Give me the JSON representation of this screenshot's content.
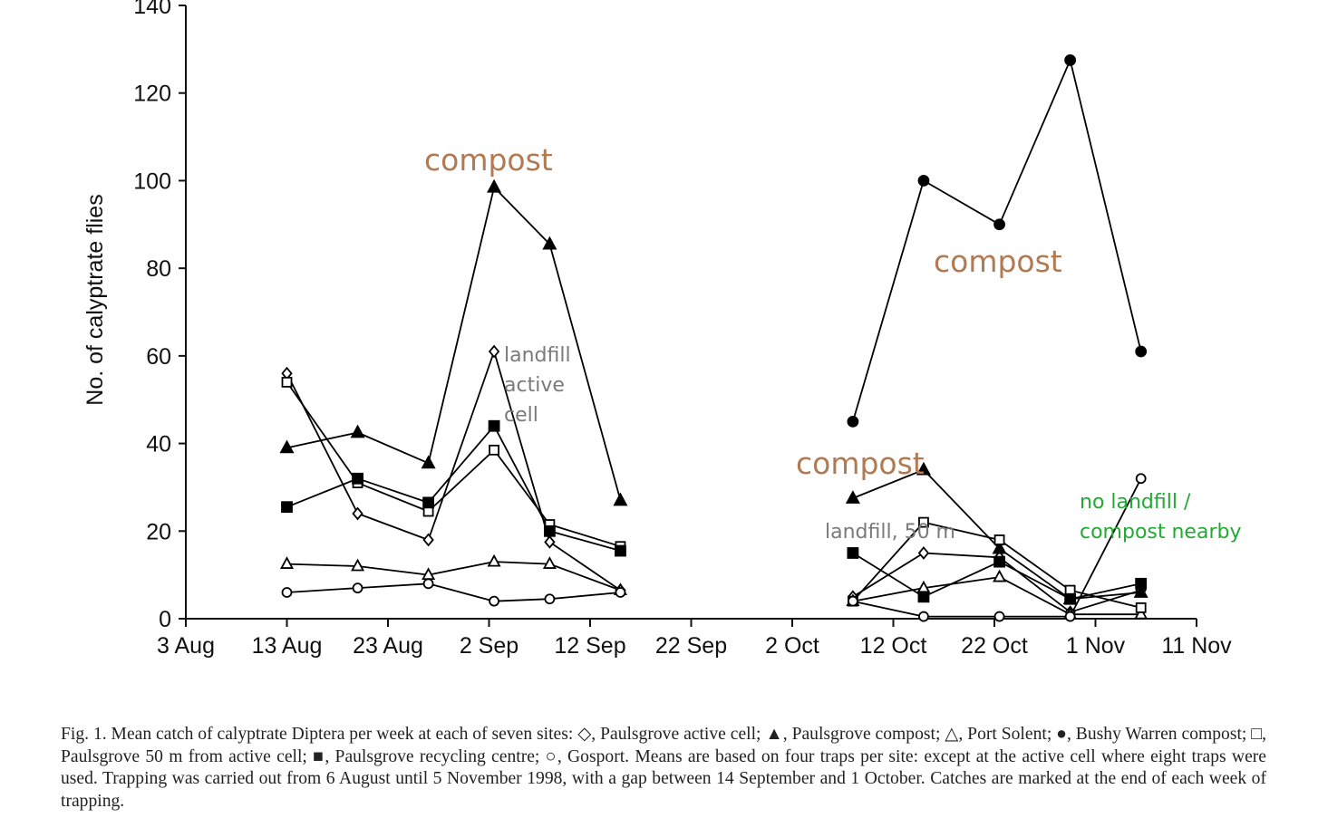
{
  "chart_data": {
    "type": "line",
    "ylabel": "No. of calyptrate flies",
    "xlabel": "",
    "ylim": [
      0,
      140
    ],
    "yticks": [
      0,
      20,
      40,
      60,
      80,
      100,
      120,
      140
    ],
    "x_unit": "days since 3 Aug 1998",
    "xlim": [
      0,
      100
    ],
    "xticks": [
      {
        "day": 0,
        "label": "3 Aug"
      },
      {
        "day": 10,
        "label": "13 Aug"
      },
      {
        "day": 20,
        "label": "23 Aug"
      },
      {
        "day": 30,
        "label": "2 Sep"
      },
      {
        "day": 40,
        "label": "12 Sep"
      },
      {
        "day": 50,
        "label": "22 Sep"
      },
      {
        "day": 60,
        "label": "2 Oct"
      },
      {
        "day": 70,
        "label": "12 Oct"
      },
      {
        "day": 80,
        "label": "22 Oct"
      },
      {
        "day": 90,
        "label": "1 Nov"
      },
      {
        "day": 100,
        "label": "11 Nov"
      }
    ],
    "series": [
      {
        "name": "Paulsgrove active cell",
        "marker": "diamond-open",
        "segments": [
          [
            [
              10,
              56
            ],
            [
              17,
              24
            ],
            [
              24,
              18
            ],
            [
              30.5,
              61
            ],
            [
              36,
              17.5
            ],
            [
              43,
              6.5
            ]
          ],
          [
            [
              66,
              5
            ],
            [
              73,
              15
            ],
            [
              80.5,
              14
            ],
            [
              87.5,
              1.5
            ],
            [
              94.5,
              6.5
            ]
          ]
        ]
      },
      {
        "name": "Paulsgrove compost",
        "marker": "triangle-filled",
        "segments": [
          [
            [
              10,
              39
            ],
            [
              17,
              42.5
            ],
            [
              24,
              35.5
            ],
            [
              30.5,
              98.5
            ],
            [
              36,
              85.5
            ],
            [
              43,
              27
            ]
          ],
          [
            [
              66,
              27.5
            ],
            [
              73,
              34
            ],
            [
              80.5,
              16
            ],
            [
              87.5,
              4.5
            ],
            [
              94.5,
              6
            ]
          ]
        ]
      },
      {
        "name": "Port Solent",
        "marker": "triangle-open",
        "segments": [
          [
            [
              10,
              12.5
            ],
            [
              17,
              12
            ],
            [
              24,
              10
            ],
            [
              30.5,
              13
            ],
            [
              36,
              12.5
            ],
            [
              43,
              6.5
            ]
          ],
          [
            [
              66,
              4
            ],
            [
              73,
              7
            ],
            [
              80.5,
              9.5
            ],
            [
              87.5,
              1
            ],
            [
              94.5,
              1
            ]
          ]
        ]
      },
      {
        "name": "Bushy Warren compost",
        "marker": "circle-filled",
        "segments": [
          [
            [
              66,
              45
            ],
            [
              73,
              100
            ],
            [
              80.5,
              90
            ],
            [
              87.5,
              127.5
            ],
            [
              94.5,
              61
            ]
          ]
        ]
      },
      {
        "name": "Paulsgrove 50 m from active cell",
        "marker": "square-open",
        "segments": [
          [
            [
              10,
              54
            ],
            [
              17,
              31
            ],
            [
              24,
              24.5
            ],
            [
              30.5,
              38.5
            ],
            [
              36,
              21.5
            ],
            [
              43,
              16.5
            ]
          ],
          [
            [
              66,
              4
            ],
            [
              73,
              22
            ],
            [
              80.5,
              18
            ],
            [
              87.5,
              6.5
            ],
            [
              94.5,
              2.5
            ]
          ]
        ]
      },
      {
        "name": "Paulsgrove recycling centre",
        "marker": "square-filled",
        "segments": [
          [
            [
              10,
              25.5
            ],
            [
              17,
              32
            ],
            [
              24,
              26.5
            ],
            [
              30.5,
              44
            ],
            [
              36,
              20
            ],
            [
              43,
              15.5
            ]
          ],
          [
            [
              66,
              15
            ],
            [
              73,
              5
            ],
            [
              80.5,
              13
            ],
            [
              87.5,
              4.5
            ],
            [
              94.5,
              8
            ]
          ]
        ]
      },
      {
        "name": "Gosport",
        "marker": "circle-open",
        "segments": [
          [
            [
              10,
              6
            ],
            [
              17,
              7
            ],
            [
              24,
              8
            ],
            [
              30.5,
              4
            ],
            [
              36,
              4.5
            ],
            [
              43,
              6
            ]
          ],
          [
            [
              66,
              4
            ],
            [
              73,
              0.5
            ],
            [
              80.5,
              0.5
            ],
            [
              87.5,
              0.5
            ],
            [
              94.5,
              32
            ]
          ]
        ]
      }
    ],
    "annotations": [
      {
        "text": "compost",
        "color": "#b07a55"
      },
      {
        "text": "compost",
        "color": "#b07a55"
      },
      {
        "text": "compost",
        "color": "#b07a55"
      },
      {
        "text": "landfill",
        "color": "#7a7a7a"
      },
      {
        "text": "active",
        "color": "#7a7a7a"
      },
      {
        "text": "cell",
        "color": "#7a7a7a"
      },
      {
        "text": "landfill, 50 m",
        "color": "#7a7a7a"
      },
      {
        "text": "no landfill /",
        "color": "#22aa33"
      },
      {
        "text": "compost nearby",
        "color": "#22aa33"
      }
    ]
  },
  "caption": "Fig. 1. Mean catch of calyptrate Diptera per week at each of seven sites: ◇, Paulsgrove active cell; ▲, Paulsgrove compost; △, Port Solent; ●, Bushy Warren compost; □, Paulsgrove 50 m from active cell; ■, Paulsgrove recycling centre; ○, Gosport. Means are based on four traps per site: except at the active cell where eight traps were used. Trapping was carried out from 6 August until 5 November 1998, with a gap between 14 September and 1 October. Catches are marked at the end of each week of trapping."
}
